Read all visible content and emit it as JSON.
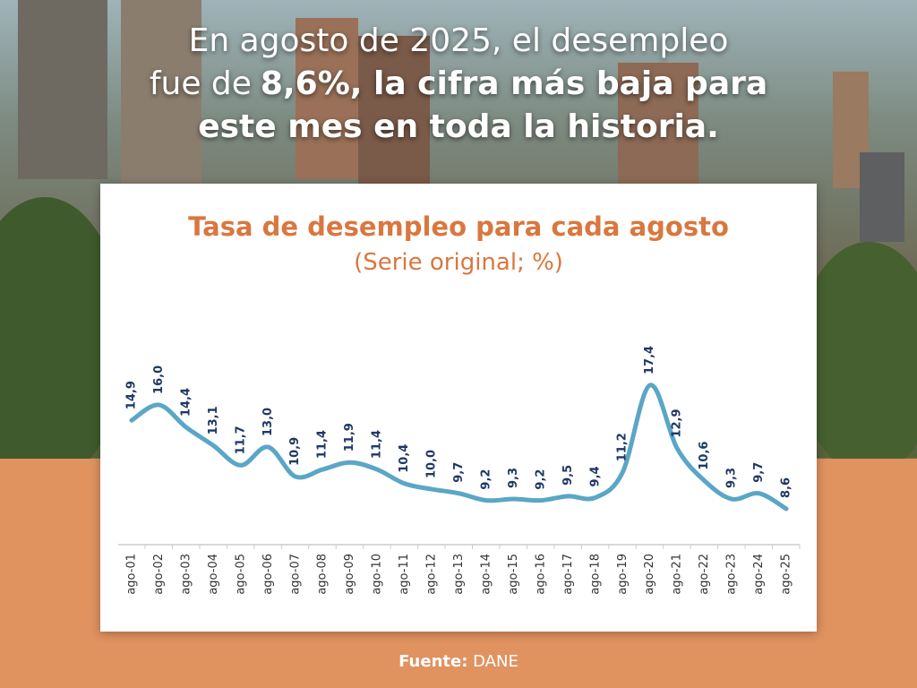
{
  "headline": {
    "line1": "En agosto de 2025, el desempleo",
    "line2_regular": "fue de",
    "line2_bold": "8,6%, la cifra más baja para",
    "line3": "este mes en toda la historia."
  },
  "chart_data": {
    "type": "line",
    "title": "Tasa de desempleo para cada agosto",
    "subtitle": "(Serie original; %)",
    "categories": [
      "ago-01",
      "ago-02",
      "ago-03",
      "ago-04",
      "ago-05",
      "ago-06",
      "ago-07",
      "ago-08",
      "ago-09",
      "ago-10",
      "ago-11",
      "ago-12",
      "ago-13",
      "ago-14",
      "ago-15",
      "ago-16",
      "ago-17",
      "ago-18",
      "ago-19",
      "ago-20",
      "ago-21",
      "ago-22",
      "ago-23",
      "ago-24",
      "ago-25"
    ],
    "values": [
      14.9,
      16.0,
      14.4,
      13.1,
      11.7,
      13.0,
      10.9,
      11.4,
      11.9,
      11.4,
      10.4,
      10.0,
      9.7,
      9.2,
      9.3,
      9.2,
      9.5,
      9.4,
      11.2,
      17.4,
      12.9,
      10.6,
      9.3,
      9.7,
      8.6
    ],
    "value_labels": [
      "14,9",
      "16,0",
      "14,4",
      "13,1",
      "11,7",
      "13,0",
      "10,9",
      "11,4",
      "11,9",
      "11,4",
      "10,4",
      "10,0",
      "9,7",
      "9,2",
      "9,3",
      "9,2",
      "9,5",
      "9,4",
      "11,2",
      "17,4",
      "12,9",
      "10,6",
      "9,3",
      "9,7",
      "8,6"
    ],
    "color": "#5aa6c6"
  },
  "footer": {
    "label": "Fuente:",
    "source": "DANE"
  }
}
